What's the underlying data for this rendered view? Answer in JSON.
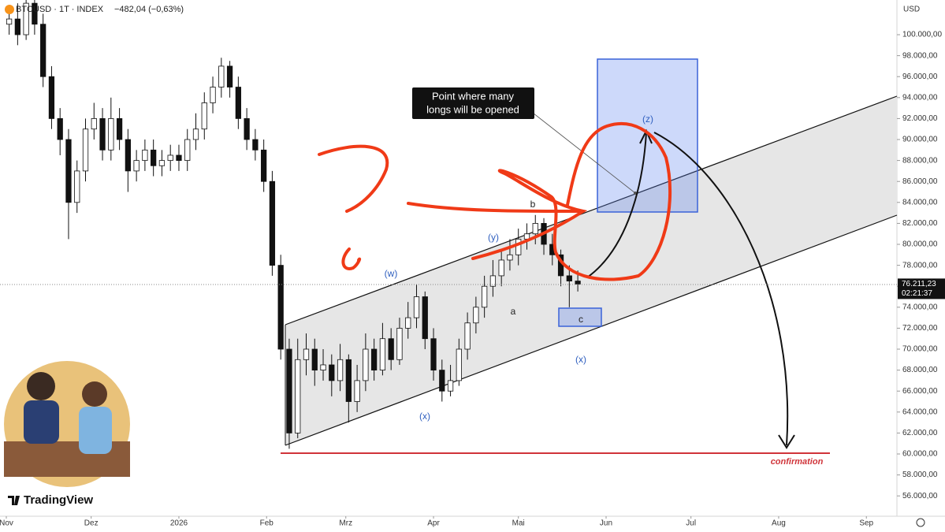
{
  "chart_data": {
    "type": "candlestick",
    "symbol": "BTCUSD · 1T · INDEX",
    "change": "−482,04 (−0,63%)",
    "currency": "USD",
    "countdown": "02:21:37",
    "watermark": "TradingView",
    "last_price": {
      "value": 76211.23,
      "label": "76.211,23"
    },
    "xlim": [
      -2.23,
      314.8
    ],
    "ylim": [
      54060,
      103310
    ],
    "xticks": [
      {
        "value": 0,
        "label": "Nov"
      },
      {
        "value": 30,
        "label": "Dez"
      },
      {
        "value": 61,
        "label": "2026"
      },
      {
        "value": 92,
        "label": "Feb"
      },
      {
        "value": 120,
        "label": "Mrz"
      },
      {
        "value": 151,
        "label": "Apr"
      },
      {
        "value": 181,
        "label": "Mai"
      },
      {
        "value": 212,
        "label": "Jun"
      },
      {
        "value": 242,
        "label": "Jul"
      },
      {
        "value": 273,
        "label": "Aug"
      },
      {
        "value": 304,
        "label": "Sep"
      }
    ],
    "yticks": [
      {
        "value": 56000,
        "label": "56.000,00"
      },
      {
        "value": 58000,
        "label": "58.000,00"
      },
      {
        "value": 60000,
        "label": "60.000,00"
      },
      {
        "value": 62000,
        "label": "62.000,00"
      },
      {
        "value": 64000,
        "label": "64.000,00"
      },
      {
        "value": 66000,
        "label": "66.000,00"
      },
      {
        "value": 68000,
        "label": "68.000,00"
      },
      {
        "value": 70000,
        "label": "70.000,00"
      },
      {
        "value": 72000,
        "label": "72.000,00"
      },
      {
        "value": 74000,
        "label": "74.000,00"
      },
      {
        "value": 76000,
        "label": "76.000,00"
      },
      {
        "value": 78000,
        "label": "78.000,00"
      },
      {
        "value": 80000,
        "label": "80.000,00"
      },
      {
        "value": 82000,
        "label": "82.000,00"
      },
      {
        "value": 84000,
        "label": "84.000,00"
      },
      {
        "value": 86000,
        "label": "86.000,00"
      },
      {
        "value": 88000,
        "label": "88.000,00"
      },
      {
        "value": 90000,
        "label": "90.000,00"
      },
      {
        "value": 92000,
        "label": "92.000,00"
      },
      {
        "value": 94000,
        "label": "94.000,00"
      },
      {
        "value": 96000,
        "label": "96.000,00"
      },
      {
        "value": 98000,
        "label": "98.000,00"
      },
      {
        "value": 100000,
        "label": "100.000,00"
      }
    ],
    "x": [
      1,
      4,
      7,
      10,
      13,
      16,
      19,
      22,
      25,
      28,
      31,
      34,
      37,
      40,
      43,
      46,
      49,
      52,
      55,
      58,
      61,
      64,
      67,
      70,
      73,
      76,
      79,
      82,
      85,
      88,
      91,
      94,
      97,
      100,
      103,
      106,
      109,
      112,
      115,
      118,
      121,
      124,
      127,
      130,
      133,
      136,
      139,
      142,
      145,
      148,
      151,
      154,
      157,
      160,
      163,
      166,
      169,
      172,
      175,
      178,
      181,
      184,
      187,
      190,
      193,
      196,
      199,
      202
    ],
    "open": [
      101000,
      101500,
      100000,
      103000,
      101000,
      96000,
      92000,
      90000,
      84000,
      87000,
      91000,
      92000,
      89000,
      92000,
      90000,
      87000,
      88000,
      89000,
      87500,
      88000,
      88500,
      88000,
      90000,
      91000,
      93500,
      95000,
      97000,
      95000,
      92000,
      90000,
      89000,
      86000,
      78000,
      70000,
      62000,
      69000,
      70000,
      68000,
      68500,
      67000,
      69000,
      65000,
      67000,
      70000,
      68000,
      71000,
      69000,
      72000,
      73000,
      75000,
      71000,
      68000,
      66000,
      67000,
      70000,
      72500,
      74000,
      76000,
      77000,
      78500,
      79000,
      80500,
      81000,
      82000,
      80000,
      79000,
      77000,
      76500
    ],
    "high": [
      102800,
      103000,
      104000,
      104000,
      102000,
      97000,
      93000,
      91000,
      88000,
      92000,
      93500,
      93000,
      94000,
      93000,
      91000,
      89000,
      90000,
      90000,
      89000,
      89500,
      89500,
      91000,
      92500,
      94500,
      96000,
      97800,
      97500,
      96000,
      93000,
      91000,
      90000,
      87000,
      79000,
      71000,
      71000,
      71500,
      71000,
      70000,
      69500,
      70500,
      69500,
      68500,
      71500,
      71000,
      72500,
      72000,
      73000,
      74500,
      76200,
      75500,
      72000,
      69000,
      68500,
      71000,
      73500,
      75000,
      77000,
      78500,
      79500,
      80500,
      81500,
      82000,
      82800,
      82500,
      81000,
      79500,
      78000,
      77500
    ],
    "low": [
      100000,
      99000,
      99500,
      100000,
      95000,
      91000,
      88500,
      80500,
      83000,
      86000,
      90000,
      88000,
      88000,
      89000,
      85000,
      86000,
      87000,
      86500,
      86500,
      87000,
      87000,
      87000,
      89000,
      90000,
      92500,
      94000,
      94000,
      91000,
      89000,
      88000,
      85000,
      77000,
      69000,
      60500,
      61500,
      67500,
      66500,
      67000,
      65500,
      66000,
      63000,
      64000,
      66000,
      67000,
      67500,
      68000,
      68500,
      71000,
      72000,
      70000,
      67000,
      65000,
      65500,
      66500,
      69000,
      71500,
      73000,
      75000,
      76000,
      77500,
      78000,
      79500,
      80000,
      79000,
      78000,
      76000,
      74000,
      75500
    ],
    "close": [
      101500,
      100000,
      103000,
      101000,
      96000,
      92000,
      90000,
      84000,
      87000,
      91000,
      92000,
      89000,
      92000,
      90000,
      87000,
      88000,
      89000,
      87500,
      88000,
      88500,
      88000,
      90000,
      91000,
      93500,
      95000,
      97000,
      95000,
      92000,
      90000,
      89000,
      86000,
      78000,
      70000,
      62000,
      69000,
      70000,
      68000,
      68500,
      67000,
      69000,
      65000,
      67000,
      70000,
      68000,
      71000,
      69000,
      72000,
      73000,
      75000,
      71000,
      68000,
      66000,
      67000,
      70000,
      72500,
      74000,
      76000,
      77000,
      78500,
      79000,
      80500,
      81000,
      82000,
      80000,
      79000,
      77000,
      76500,
      76211.23
    ],
    "annotations": [
      "(w)",
      "(x)",
      "(y)",
      "(z)",
      "a",
      "b",
      "c",
      "(x)",
      "confirmation"
    ],
    "callout": [
      "Point where many",
      "longs will be opened"
    ]
  }
}
